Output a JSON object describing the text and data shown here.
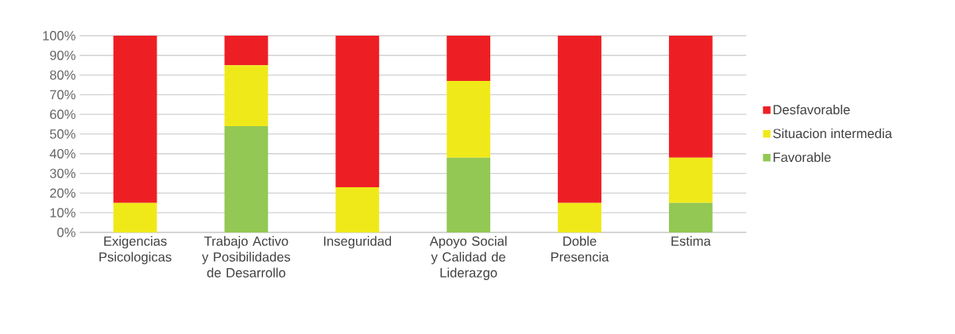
{
  "chart_data": {
    "type": "bar",
    "stacked": true,
    "categories": [
      "Exigencias Psicologicas",
      "Trabajo Activo y Posibilidades de Desarrollo",
      "Inseguridad",
      "Apoyo Social y Calidad de Liderazgo",
      "Doble Presencia",
      "Estima"
    ],
    "series": [
      {
        "name": "Favorable",
        "color": "#92c853",
        "values": [
          0,
          54,
          0,
          38,
          0,
          15
        ]
      },
      {
        "name": "Situacion intermedia",
        "color": "#f0e91a",
        "values": [
          15,
          31,
          23,
          39,
          15,
          23
        ]
      },
      {
        "name": "Desfavorable",
        "color": "#ee1f24",
        "values": [
          85,
          15,
          77,
          23,
          85,
          62
        ]
      }
    ],
    "ylim": [
      0,
      100
    ],
    "yticks": [
      {
        "value": 0,
        "label": "0%"
      },
      {
        "value": 10,
        "label": "10%"
      },
      {
        "value": 20,
        "label": "20%"
      },
      {
        "value": 30,
        "label": "30%"
      },
      {
        "value": 40,
        "label": "40%"
      },
      {
        "value": 50,
        "label": "50%"
      },
      {
        "value": 60,
        "label": "60%"
      },
      {
        "value": 70,
        "label": "70%"
      },
      {
        "value": 80,
        "label": "80%"
      },
      {
        "value": 90,
        "label": "90%"
      },
      {
        "value": 100,
        "label": "100%"
      }
    ],
    "grid": "y",
    "legend": "right"
  }
}
